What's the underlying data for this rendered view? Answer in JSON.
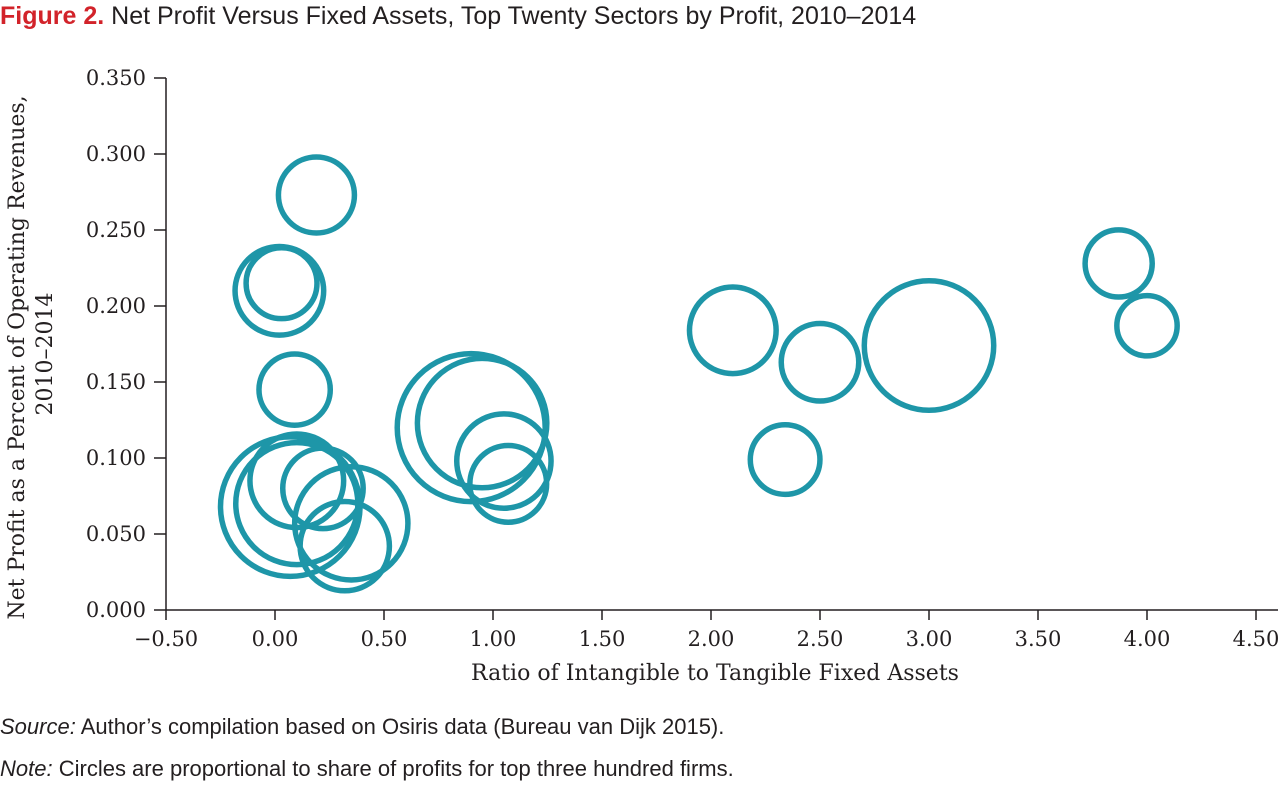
{
  "figure": {
    "label": "Figure 2.",
    "title": "Net Profit Versus Fixed Assets, Top Twenty Sectors by Profit, 2010–2014"
  },
  "notes": {
    "source_label": "Source:",
    "source_text": "Author’s compilation based on Osiris data (Bureau van Dijk 2015).",
    "note_label": "Note:",
    "note_text": "Circles are proportional to share of profits for top three hundred firms."
  },
  "colors": {
    "bubble": "#1e96a8",
    "axis": "#231f20"
  },
  "chart_data": {
    "type": "scatter",
    "bubble": true,
    "title": "Net Profit Versus Fixed Assets, Top Twenty Sectors by Profit, 2010–2014",
    "xlabel": "Ratio of Intangible to Tangible Fixed Assets",
    "ylabel_lines": [
      "Net Profit as a Percent of Operating Revenues,",
      "2010–2014"
    ],
    "xlim": [
      -0.5,
      4.5
    ],
    "ylim": [
      0,
      0.35
    ],
    "xticks": [
      -0.5,
      0,
      0.5,
      1.0,
      1.5,
      2.0,
      2.5,
      3.0,
      3.5,
      4.0,
      4.5
    ],
    "xtick_labels": [
      "−0.50",
      "0.00",
      "0.50",
      "1.00",
      "1.50",
      "2.00",
      "2.50",
      "3.00",
      "3.50",
      "4.00",
      "4.50"
    ],
    "yticks": [
      0,
      0.05,
      0.1,
      0.15,
      0.2,
      0.25,
      0.3,
      0.35
    ],
    "ytick_labels": [
      "0.000",
      "0.050",
      "0.100",
      "0.150",
      "0.200",
      "0.250",
      "0.300",
      "0.350"
    ],
    "grid": false,
    "points": [
      {
        "x": 0.19,
        "y": 0.273,
        "size": 1.0
      },
      {
        "x": 0.02,
        "y": 0.21,
        "size": 1.36
      },
      {
        "x": 0.03,
        "y": 0.215,
        "size": 0.87
      },
      {
        "x": 0.09,
        "y": 0.145,
        "size": 0.88
      },
      {
        "x": 0.07,
        "y": 0.068,
        "size": 3.37
      },
      {
        "x": 0.1,
        "y": 0.07,
        "size": 2.58
      },
      {
        "x": 0.1,
        "y": 0.085,
        "size": 1.52
      },
      {
        "x": 0.22,
        "y": 0.08,
        "size": 1.12
      },
      {
        "x": 0.35,
        "y": 0.057,
        "size": 2.22
      },
      {
        "x": 0.32,
        "y": 0.042,
        "size": 1.38
      },
      {
        "x": 0.9,
        "y": 0.12,
        "size": 3.79
      },
      {
        "x": 0.95,
        "y": 0.123,
        "size": 2.9
      },
      {
        "x": 1.05,
        "y": 0.098,
        "size": 1.54
      },
      {
        "x": 1.07,
        "y": 0.083,
        "size": 1.02
      },
      {
        "x": 2.1,
        "y": 0.184,
        "size": 1.3
      },
      {
        "x": 2.5,
        "y": 0.163,
        "size": 1.04
      },
      {
        "x": 2.34,
        "y": 0.099,
        "size": 0.84
      },
      {
        "x": 3.0,
        "y": 0.174,
        "size": 2.9
      },
      {
        "x": 3.87,
        "y": 0.228,
        "size": 0.78
      },
      {
        "x": 4.0,
        "y": 0.187,
        "size": 0.63
      }
    ]
  }
}
